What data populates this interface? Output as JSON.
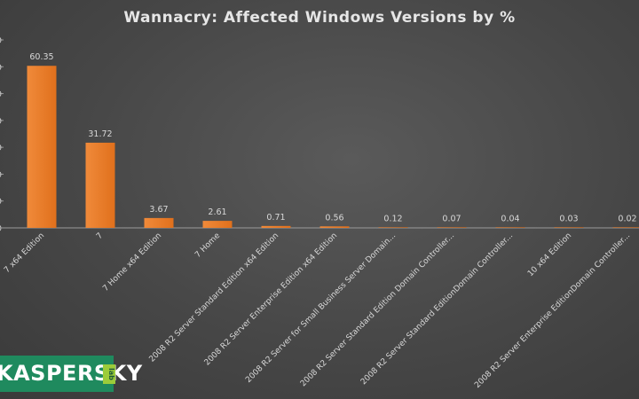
{
  "chart_data": {
    "type": "bar",
    "title": "Wannacry: Affected Windows Versions by %",
    "categories": [
      "7 x64 Edition",
      "7",
      "7 Home x64 Edition",
      "7 Home",
      "2008 R2 Server Standard Edition x64 Edition",
      "2008 R2 Server Enterprise Edition x64 Edition",
      "2008 R2 Server for Small Business Server Domain...",
      "2008 R2 Server Standard Edition Domain Controller...",
      "2008 R2 Server Standard EditionDomain Controller...",
      "10 x64 Edition",
      "2008 R2 Server Enterprise EditionDomain Controller..."
    ],
    "values": [
      60.35,
      31.72,
      3.67,
      2.61,
      0.71,
      0.56,
      0.12,
      0.07,
      0.04,
      0.03,
      0.02
    ],
    "value_labels": [
      "60.35",
      "31.72",
      "3.67",
      "2.61",
      "0.71",
      "0.56",
      "0.12",
      "0.07",
      "0.04",
      "0.03",
      "0.02"
    ],
    "ylim": [
      0,
      70
    ],
    "yticks": [
      0,
      10,
      20,
      30,
      40,
      50,
      60,
      70
    ],
    "xlabel": "",
    "ylabel": "",
    "grid": false,
    "bar_color": "#ee7d2a",
    "axis_color": "#9a9a9a",
    "text_color": "#d8d8d8"
  },
  "logo": {
    "text": "KASPERSKY",
    "tag": "lab"
  }
}
